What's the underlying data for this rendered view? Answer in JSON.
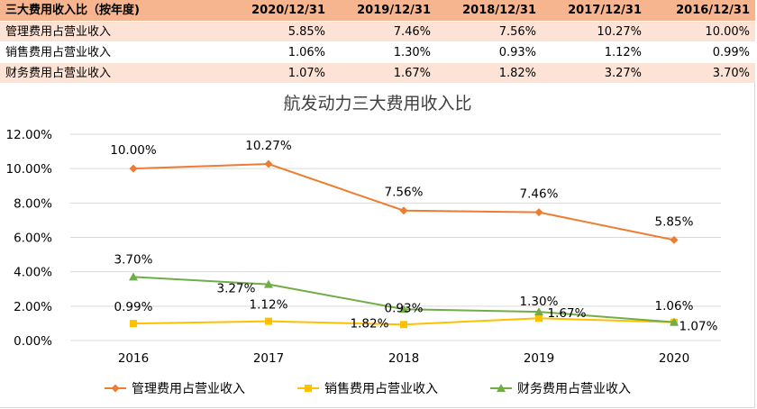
{
  "table": {
    "header": [
      "三大费用收入比（按年度)",
      "2020/12/31",
      "2019/12/31",
      "2018/12/31",
      "2017/12/31",
      "2016/12/31"
    ],
    "rows": [
      {
        "label": "管理费用占营业收入",
        "values": [
          "5.85%",
          "7.46%",
          "7.56%",
          "10.27%",
          "10.00%"
        ]
      },
      {
        "label": "销售费用占营业收入",
        "values": [
          "1.06%",
          "1.30%",
          "0.93%",
          "1.12%",
          "0.99%"
        ]
      },
      {
        "label": "财务费用占营业收入",
        "values": [
          "1.07%",
          "1.67%",
          "1.82%",
          "3.27%",
          "3.70%"
        ]
      }
    ]
  },
  "colors": {
    "header_bg": "#f6b58e",
    "row_shade": "#fce3d6",
    "gridline": "#d9d9d9"
  },
  "chart_data": {
    "type": "line",
    "title": "航发动力三大费用收入比",
    "categories": [
      "2016",
      "2017",
      "2018",
      "2019",
      "2020"
    ],
    "ylim": [
      0,
      12
    ],
    "yticks": [
      "0.00%",
      "2.00%",
      "4.00%",
      "6.00%",
      "8.00%",
      "10.00%",
      "12.00%"
    ],
    "grid": true,
    "legend_position": "bottom",
    "series": [
      {
        "name": "管理费用占营业收入",
        "color": "#ed7d31",
        "marker": "diamond",
        "values": [
          10.0,
          10.27,
          7.56,
          7.46,
          5.85
        ],
        "labels": [
          "10.00%",
          "10.27%",
          "7.56%",
          "7.46%",
          "5.85%"
        ]
      },
      {
        "name": "销售费用占营业收入",
        "color": "#ffc000",
        "marker": "square",
        "values": [
          0.99,
          1.12,
          0.93,
          1.3,
          1.06
        ],
        "labels": [
          "0.99%",
          "1.12%",
          "0.93%",
          "1.30%",
          "1.06%"
        ]
      },
      {
        "name": "财务费用占营业收入",
        "color": "#70ad47",
        "marker": "triangle",
        "values": [
          3.7,
          3.27,
          1.82,
          1.67,
          1.07
        ],
        "labels": [
          "3.70%",
          "3.27%",
          "1.82%",
          "1.67%",
          "1.07%"
        ]
      }
    ]
  }
}
